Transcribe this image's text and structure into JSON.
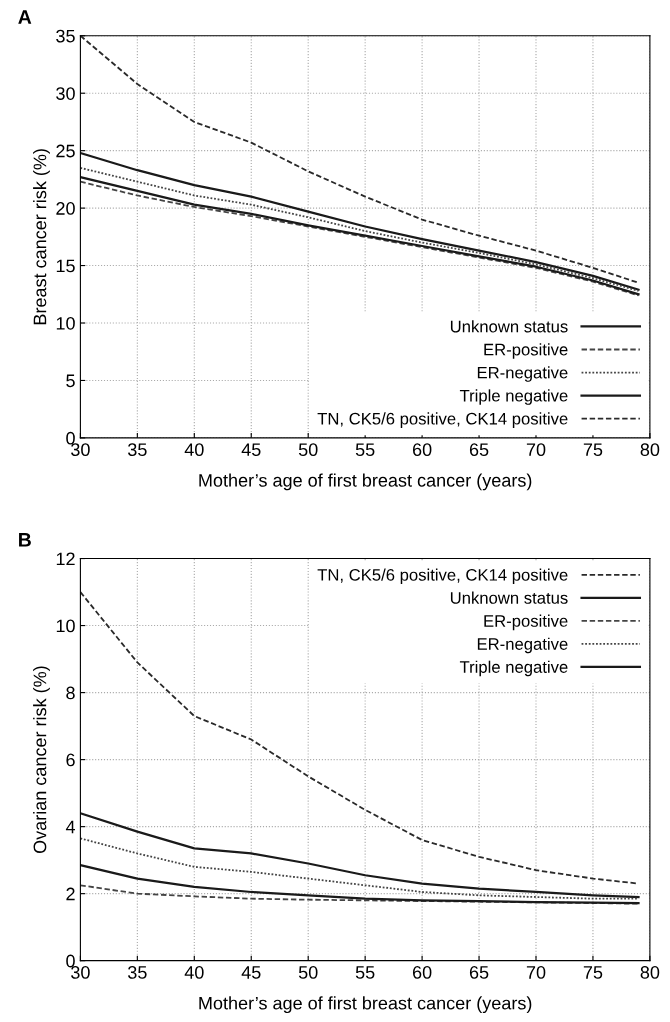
{
  "chart_data": [
    {
      "type": "line",
      "annotations": [
        "A"
      ],
      "xlabel": "Mother’s age of first breast cancer (years)",
      "ylabel": "Breast cancer risk (%)",
      "x": [
        30,
        35,
        40,
        45,
        50,
        55,
        60,
        65,
        70,
        75,
        79
      ],
      "xlim": [
        30,
        80
      ],
      "xticks": [
        30,
        35,
        40,
        45,
        50,
        55,
        60,
        65,
        70,
        75,
        80
      ],
      "ylim": [
        0,
        35
      ],
      "yticks": [
        0,
        5,
        10,
        15,
        20,
        25,
        30,
        35
      ],
      "grid": true,
      "legend": "bottom right",
      "series": [
        {
          "name": "Unknown status",
          "color": "#1a1a1a",
          "line_style": "solid",
          "values": [
            24.8,
            23.3,
            22,
            21,
            19.7,
            18.4,
            17.3,
            16.3,
            15.3,
            14.1,
            12.9
          ]
        },
        {
          "name": "ER-positive",
          "color": "#444444",
          "line_style": "dashed",
          "values": [
            22.3,
            21.1,
            20.1,
            19.3,
            18.4,
            17.5,
            16.6,
            15.7,
            14.8,
            13.6,
            12.4
          ]
        },
        {
          "name": "ER-negative",
          "color": "#444444",
          "line_style": "dotted",
          "values": [
            23.5,
            22.3,
            21.1,
            20.3,
            19.2,
            18,
            17,
            16.1,
            15.1,
            13.9,
            12.8
          ]
        },
        {
          "name": "Triple negative",
          "color": "#1a1a1a",
          "line_style": "solid",
          "values": [
            22.7,
            21.5,
            20.3,
            19.5,
            18.5,
            17.6,
            16.7,
            15.8,
            14.9,
            13.7,
            12.5
          ]
        },
        {
          "name": "TN, CK5/6 positive, CK14 positive",
          "color": "#2a2a2a",
          "line_style": "dashed",
          "values": [
            35,
            30.8,
            27.5,
            25.7,
            23.2,
            21,
            19,
            17.6,
            16.3,
            14.8,
            13.5
          ]
        }
      ]
    },
    {
      "type": "line",
      "annotations": [
        "B"
      ],
      "xlabel": "Mother’s age of first breast cancer (years)",
      "ylabel": "Ovarian cancer risk (%)",
      "x": [
        30,
        35,
        40,
        45,
        50,
        55,
        60,
        65,
        70,
        75,
        79
      ],
      "xlim": [
        30,
        80
      ],
      "xticks": [
        30,
        35,
        40,
        45,
        50,
        55,
        60,
        65,
        70,
        75,
        80
      ],
      "ylim": [
        0,
        12
      ],
      "yticks": [
        0,
        2,
        4,
        6,
        8,
        10,
        12
      ],
      "grid": true,
      "legend": "top right",
      "series": [
        {
          "name": "TN, CK5/6 positive, CK14 positive",
          "color": "#2a2a2a",
          "line_style": "dashed",
          "values": [
            11.0,
            8.9,
            7.3,
            6.6,
            5.5,
            4.5,
            3.6,
            3.1,
            2.7,
            2.45,
            2.3
          ]
        },
        {
          "name": "Unknown status",
          "color": "#1a1a1a",
          "line_style": "solid",
          "values": [
            4.4,
            3.85,
            3.35,
            3.2,
            2.9,
            2.55,
            2.3,
            2.15,
            2.05,
            1.95,
            1.9
          ]
        },
        {
          "name": "ER-positive",
          "color": "#444444",
          "line_style": "dashed",
          "values": [
            2.25,
            2.0,
            1.92,
            1.85,
            1.82,
            1.8,
            1.78,
            1.76,
            1.74,
            1.72,
            1.7
          ]
        },
        {
          "name": "ER-negative",
          "color": "#444444",
          "line_style": "dotted",
          "values": [
            3.65,
            3.2,
            2.8,
            2.65,
            2.45,
            2.25,
            2.05,
            1.95,
            1.9,
            1.85,
            1.85
          ]
        },
        {
          "name": "Triple negative",
          "color": "#1a1a1a",
          "line_style": "solid",
          "values": [
            2.85,
            2.45,
            2.2,
            2.05,
            1.95,
            1.85,
            1.8,
            1.78,
            1.75,
            1.73,
            1.72
          ]
        }
      ]
    }
  ]
}
